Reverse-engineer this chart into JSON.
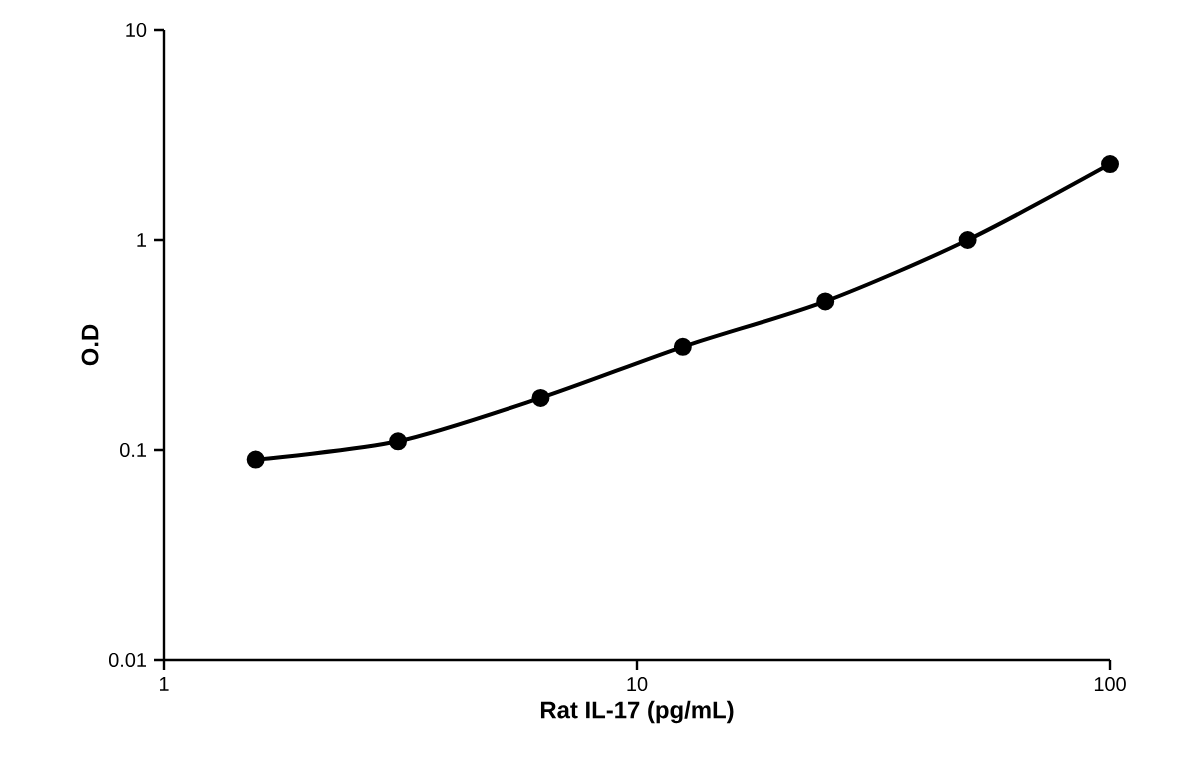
{
  "chart_data": {
    "type": "line",
    "xlabel": "Rat IL-17 (pg/mL)",
    "ylabel": "O.D",
    "x": [
      1.5625,
      3.125,
      6.25,
      12.5,
      25,
      50,
      100
    ],
    "values": [
      0.09,
      0.11,
      0.177,
      0.31,
      0.51,
      1.0,
      2.3
    ],
    "color": "#000000",
    "marker": "circle",
    "log": "xy",
    "xlim": [
      1,
      100
    ],
    "ylim": [
      0.01,
      10
    ],
    "xticks": [
      1,
      10,
      100
    ],
    "yticks": [
      0.01,
      0.1,
      1,
      10
    ],
    "grid": false
  }
}
